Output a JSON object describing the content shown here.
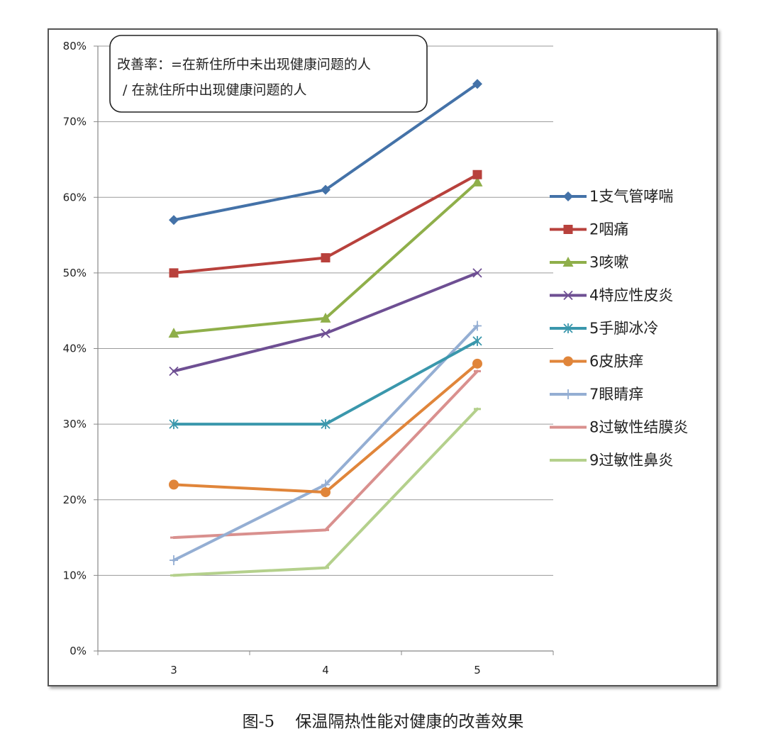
{
  "caption": "图-5    保温隔热性能对健康的改善效果",
  "chart_data": {
    "type": "line",
    "note_lines": [
      "改善率：=在新住所中未出现健康问题的人",
      "/ 在就住所中出现健康问题的人"
    ],
    "categories": [
      "3",
      "4",
      "5"
    ],
    "ylim": [
      0,
      80
    ],
    "yticks": [
      "0%",
      "10%",
      "20%",
      "30%",
      "40%",
      "50%",
      "60%",
      "70%",
      "80%"
    ],
    "grid": "horizontal",
    "legend_position": "right",
    "series": [
      {
        "name": "1支气管哮喘",
        "values": [
          57,
          61,
          75
        ],
        "color": "#4472A8",
        "marker": "diamond"
      },
      {
        "name": "2咽痛",
        "values": [
          50,
          52,
          63
        ],
        "color": "#B8413C",
        "marker": "square"
      },
      {
        "name": "3咳嗽",
        "values": [
          42,
          44,
          62
        ],
        "color": "#8FAF4A",
        "marker": "triangle"
      },
      {
        "name": "4特应性皮炎",
        "values": [
          37,
          42,
          50
        ],
        "color": "#6E4F93",
        "marker": "x"
      },
      {
        "name": "5手脚冰冷",
        "values": [
          30,
          30,
          41
        ],
        "color": "#3A97AC",
        "marker": "asterisk"
      },
      {
        "name": "6皮肤痒",
        "values": [
          22,
          21,
          38
        ],
        "color": "#E0853A",
        "marker": "circle"
      },
      {
        "name": "7眼睛痒",
        "values": [
          12,
          22,
          43
        ],
        "color": "#94AED3",
        "marker": "plus"
      },
      {
        "name": "8过敏性结膜炎",
        "values": [
          15,
          16,
          37
        ],
        "color": "#D9908E",
        "marker": "dash"
      },
      {
        "name": "9过敏性鼻炎",
        "values": [
          10,
          11,
          32
        ],
        "color": "#B4D08C",
        "marker": "dash"
      }
    ]
  }
}
